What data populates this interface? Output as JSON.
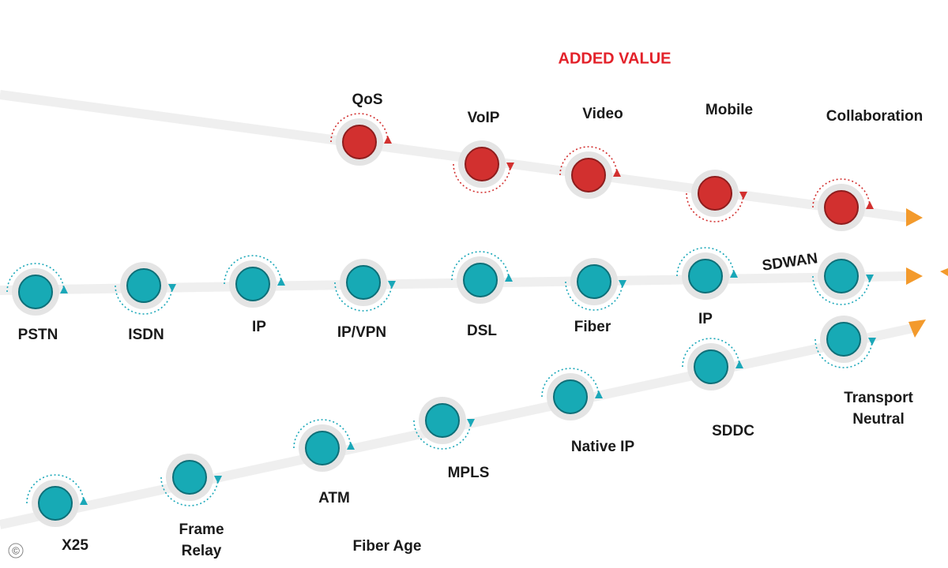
{
  "title": "ADDED VALUE",
  "tracks": [
    {
      "nodes": [
        {
          "label": "QoS"
        },
        {
          "label": "VoIP"
        },
        {
          "label": "Video"
        },
        {
          "label": "Mobile"
        },
        {
          "label": "Collaboration"
        }
      ]
    },
    {
      "nodes": [
        {
          "label": "PSTN"
        },
        {
          "label": "ISDN"
        },
        {
          "label": "IP"
        },
        {
          "label": "IP/VPN"
        },
        {
          "label": "DSL"
        },
        {
          "label": "Fiber"
        },
        {
          "label": "IP"
        },
        {
          "label": "SDWAN"
        }
      ]
    },
    {
      "nodes": [
        {
          "label": "X25"
        },
        {
          "label": [
            "Frame",
            "Relay"
          ]
        },
        {
          "label": "ATM"
        },
        {
          "label": "MPLS"
        },
        {
          "label": "Native IP"
        },
        {
          "label": "SDDC"
        },
        {
          "label": [
            "Transport",
            "Neutral"
          ]
        }
      ]
    }
  ],
  "footer": {
    "era": "Fiber Age",
    "copyright": "©"
  }
}
